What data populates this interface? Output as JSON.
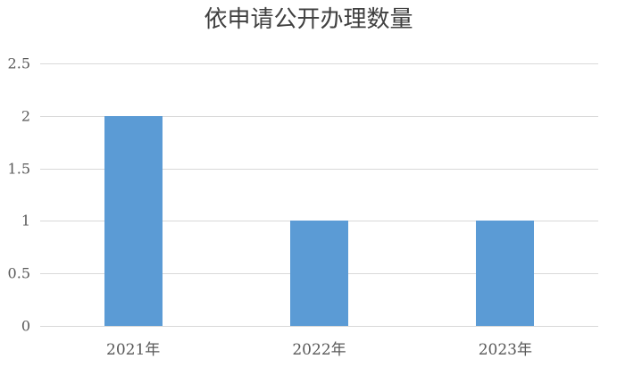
{
  "chart_data": {
    "type": "bar",
    "title": "依申请公开办理数量",
    "categories": [
      "2021年",
      "2022年",
      "2023年"
    ],
    "values": [
      2,
      1,
      1
    ],
    "series_count": 1,
    "xlabel": "",
    "ylabel": "",
    "ylim": [
      0,
      2.5
    ],
    "yticks": [
      0,
      0.5,
      1,
      1.5,
      2,
      2.5
    ],
    "ytick_labels": [
      "0",
      "0.5",
      "1",
      "1.5",
      "2",
      "2.5"
    ],
    "grid": true,
    "legend_position": "none",
    "colors": {
      "bar": "#5b9bd5",
      "gridline": "#d9d9d9",
      "axis_labels": "#595959",
      "title": "#404040",
      "background": "#ffffff"
    }
  }
}
